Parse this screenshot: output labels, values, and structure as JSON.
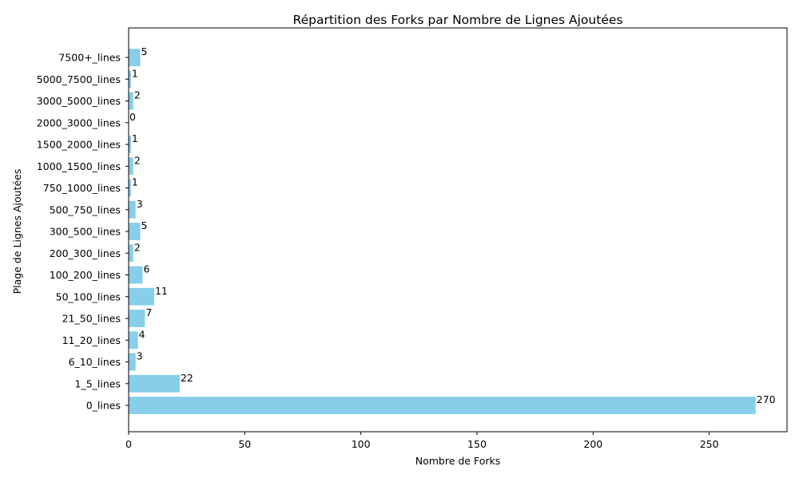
{
  "chart_data": {
    "type": "bar",
    "orientation": "horizontal",
    "title": "Répartition des Forks par Nombre de Lignes Ajoutées",
    "xlabel": "Nombre de Forks",
    "ylabel": "Plage de Lignes Ajoutées",
    "categories": [
      "0_lines",
      "1_5_lines",
      "6_10_lines",
      "11_20_lines",
      "21_50_lines",
      "50_100_lines",
      "100_200_lines",
      "200_300_lines",
      "300_500_lines",
      "500_750_lines",
      "750_1000_lines",
      "1000_1500_lines",
      "1500_2000_lines",
      "2000_3000_lines",
      "3000_5000_lines",
      "5000_7500_lines",
      "7500+_lines"
    ],
    "values": [
      270,
      22,
      3,
      4,
      7,
      11,
      6,
      2,
      5,
      3,
      1,
      2,
      1,
      0,
      2,
      1,
      5
    ],
    "xlim": [
      0,
      283.5
    ],
    "xticks": [
      0,
      50,
      100,
      150,
      200,
      250
    ],
    "bar_color": "#87ceeb",
    "grid": false,
    "legend": "none"
  }
}
